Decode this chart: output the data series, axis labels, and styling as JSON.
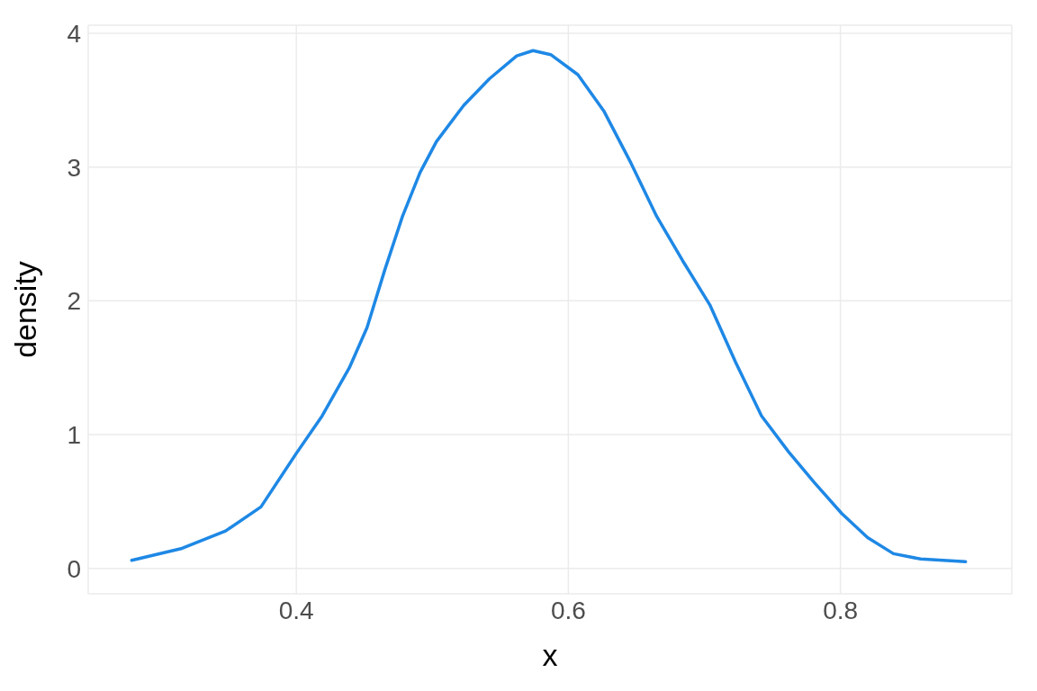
{
  "chart_data": {
    "type": "line",
    "xlabel": "x",
    "ylabel": "density",
    "x": [
      0.279,
      0.316,
      0.348,
      0.374,
      0.4,
      0.419,
      0.439,
      0.452,
      0.465,
      0.478,
      0.491,
      0.503,
      0.523,
      0.542,
      0.562,
      0.574,
      0.587,
      0.607,
      0.626,
      0.646,
      0.665,
      0.684,
      0.704,
      0.723,
      0.742,
      0.762,
      0.781,
      0.801,
      0.82,
      0.839,
      0.859,
      0.892
    ],
    "series": [
      {
        "color": "#1e88e5",
        "values": [
          0.06,
          0.15,
          0.28,
          0.46,
          0.86,
          1.14,
          1.5,
          1.8,
          2.23,
          2.63,
          2.96,
          3.19,
          3.46,
          3.66,
          3.83,
          3.87,
          3.84,
          3.69,
          3.42,
          3.03,
          2.63,
          2.3,
          1.97,
          1.54,
          1.14,
          0.87,
          0.64,
          0.41,
          0.23,
          0.11,
          0.07,
          0.05
        ]
      }
    ],
    "xlim": [
      0.247,
      0.926
    ],
    "ylim": [
      -0.19,
      4.06
    ],
    "xticks": [
      0.4,
      0.6,
      0.8
    ],
    "yticks": [
      0,
      1,
      2,
      3,
      4
    ],
    "grid": true,
    "marker": "none",
    "line_style": "solid",
    "legend": false
  }
}
